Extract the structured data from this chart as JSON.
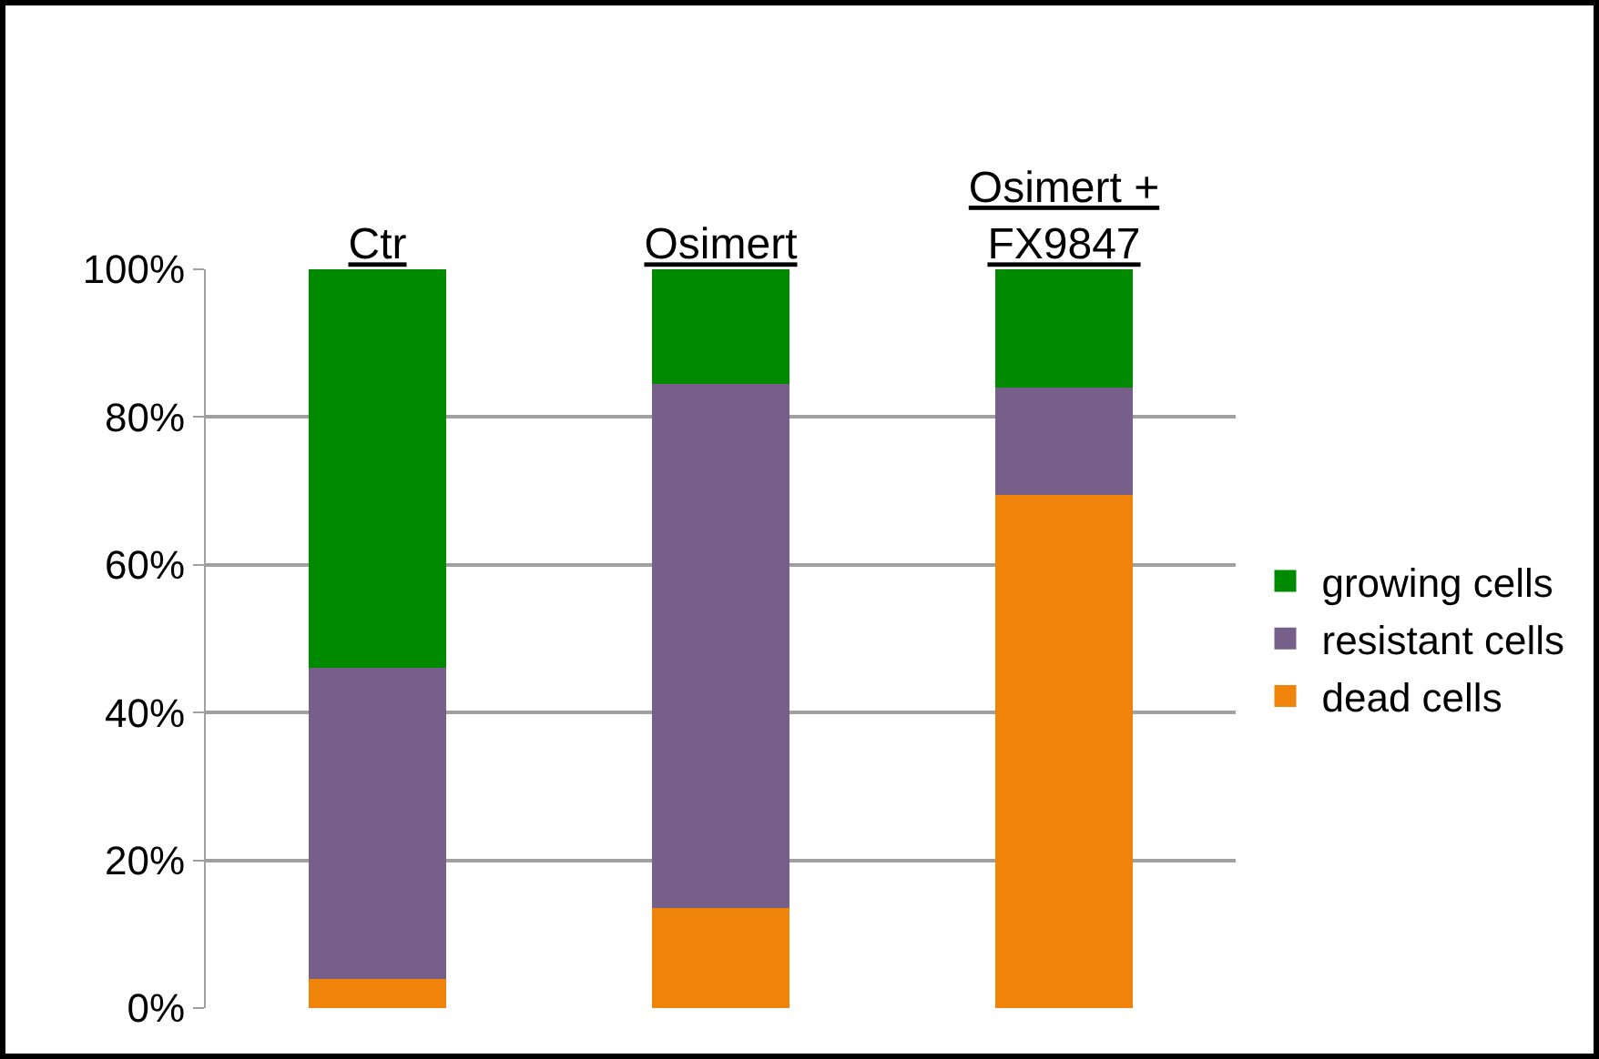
{
  "chart_data": {
    "type": "bar",
    "stacked": true,
    "categories": [
      "Ctr",
      "Osimert",
      "Osimert + FX9847"
    ],
    "series": [
      {
        "name": "dead cells",
        "color": "#f0830a",
        "values": [
          4,
          13.5,
          69.5
        ]
      },
      {
        "name": "resistant cells",
        "color": "#76608a",
        "values": [
          42,
          71,
          14.5
        ]
      },
      {
        "name": "growing cells",
        "color": "#008a00",
        "values": [
          54,
          15.5,
          16
        ]
      }
    ],
    "ylim": [
      0,
      100
    ],
    "yticks": [
      {
        "value": 0,
        "label": "0%"
      },
      {
        "value": 20,
        "label": "20%"
      },
      {
        "value": 40,
        "label": "40%"
      },
      {
        "value": 60,
        "label": "60%"
      },
      {
        "value": 80,
        "label": "80%"
      },
      {
        "value": 100,
        "label": "100%"
      }
    ],
    "grid": "y",
    "legend": "right"
  }
}
